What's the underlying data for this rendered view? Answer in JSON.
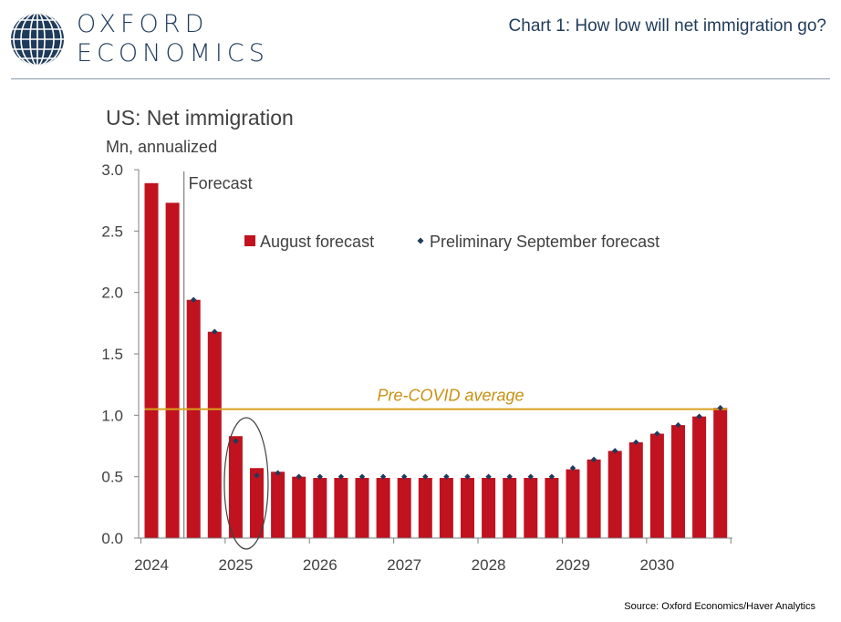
{
  "header": {
    "logo_line1": "OXFORD",
    "logo_line2": "ECONOMICS",
    "title": "Chart 1: How low will net immigration go?"
  },
  "source": "Source: Oxford Economics/Haver Analytics",
  "colors": {
    "bar": "#c0121f",
    "marker": "#1f3b5a",
    "reference_line": "#d8a21e",
    "reference_text": "#c79111",
    "brand": "#1f3b5a"
  },
  "chart_data": {
    "type": "bar",
    "title": "US: Net immigration",
    "ylabel": "Mn, annualized",
    "ylim": [
      0,
      3.0
    ],
    "yticks": [
      "0.0",
      "0.5",
      "1.0",
      "1.5",
      "2.0",
      "2.5",
      "3.0"
    ],
    "ytick_values": [
      0,
      0.5,
      1.0,
      1.5,
      2.0,
      2.5,
      3.0
    ],
    "xtick_labels": [
      "2024",
      "2025",
      "2026",
      "2027",
      "2028",
      "2029",
      "2030"
    ],
    "categories": [
      "2024Q1",
      "2024Q2",
      "2024Q3",
      "2024Q4",
      "2025Q1",
      "2025Q2",
      "2025Q3",
      "2025Q4",
      "2026Q1",
      "2026Q2",
      "2026Q3",
      "2026Q4",
      "2027Q1",
      "2027Q2",
      "2027Q3",
      "2027Q4",
      "2028Q1",
      "2028Q2",
      "2028Q3",
      "2028Q4",
      "2029Q1",
      "2029Q2",
      "2029Q3",
      "2029Q4",
      "2030Q1",
      "2030Q2",
      "2030Q3",
      "2030Q4"
    ],
    "series": [
      {
        "name": "August forecast",
        "kind": "bar",
        "values": [
          2.89,
          2.73,
          1.94,
          1.68,
          0.83,
          0.57,
          0.54,
          0.5,
          0.49,
          0.49,
          0.49,
          0.49,
          0.49,
          0.49,
          0.49,
          0.49,
          0.49,
          0.49,
          0.49,
          0.49,
          0.56,
          0.64,
          0.71,
          0.78,
          0.85,
          0.92,
          0.99,
          1.06
        ]
      },
      {
        "name": "Preliminary September forecast",
        "kind": "marker",
        "values": [
          null,
          null,
          1.94,
          1.68,
          0.79,
          0.51,
          0.53,
          0.5,
          0.5,
          0.5,
          0.5,
          0.5,
          0.5,
          0.5,
          0.5,
          0.5,
          0.5,
          0.5,
          0.5,
          0.5,
          0.57,
          0.64,
          0.71,
          0.78,
          0.85,
          0.92,
          0.99,
          1.06
        ]
      }
    ],
    "reference_line": {
      "label": "Pre-COVID average",
      "value": 1.05
    },
    "forecast_marker": {
      "label": "Forecast",
      "after_index": 1
    },
    "highlight_ellipse_categories": [
      "2025Q1",
      "2025Q2"
    ],
    "legend_position": "top-center",
    "grid": false
  }
}
